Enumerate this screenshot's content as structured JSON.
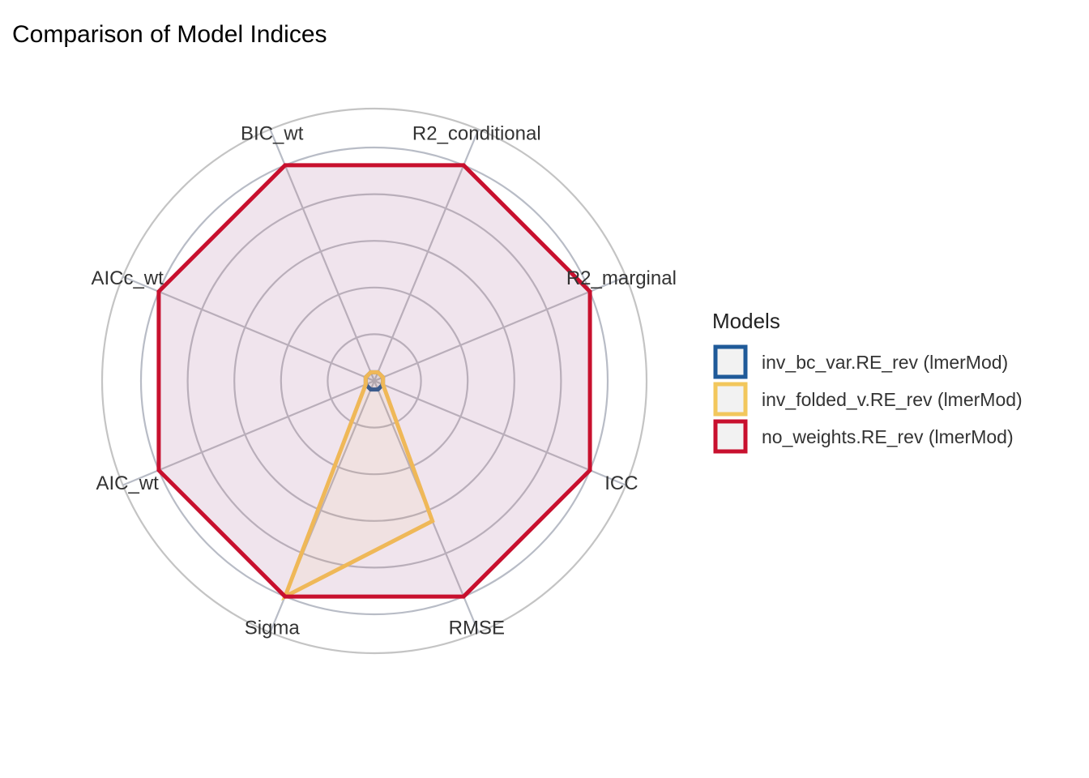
{
  "chart_data": {
    "type": "radar",
    "title": "Comparison of Model Indices",
    "axes": [
      "R2_conditional",
      "R2_marginal",
      "ICC",
      "RMSE",
      "Sigma",
      "AIC_wt",
      "AICc_wt",
      "BIC_wt"
    ],
    "rlim": [
      0,
      1
    ],
    "grid_levels": [
      0.2,
      0.4,
      0.6,
      0.8,
      1.0
    ],
    "grid": true,
    "legend_placement": "right",
    "legend_title": "Models",
    "series": [
      {
        "name": "inv_bc_var.RE_rev (lmerMod)",
        "color": "#1f5a99",
        "values": [
          0.04,
          0.04,
          0.04,
          0.04,
          0.04,
          0.04,
          0.04,
          0.04
        ]
      },
      {
        "name": "inv_folded_v.RE_rev (lmerMod)",
        "color": "#f2c75c",
        "values": [
          0.04,
          0.04,
          0.04,
          0.65,
          1.0,
          0.04,
          0.04,
          0.04
        ]
      },
      {
        "name": "no_weights.RE_rev (lmerMod)",
        "color": "#c8102e",
        "values": [
          1.0,
          1.0,
          1.0,
          1.0,
          1.0,
          1.0,
          1.0,
          1.0
        ]
      }
    ]
  }
}
